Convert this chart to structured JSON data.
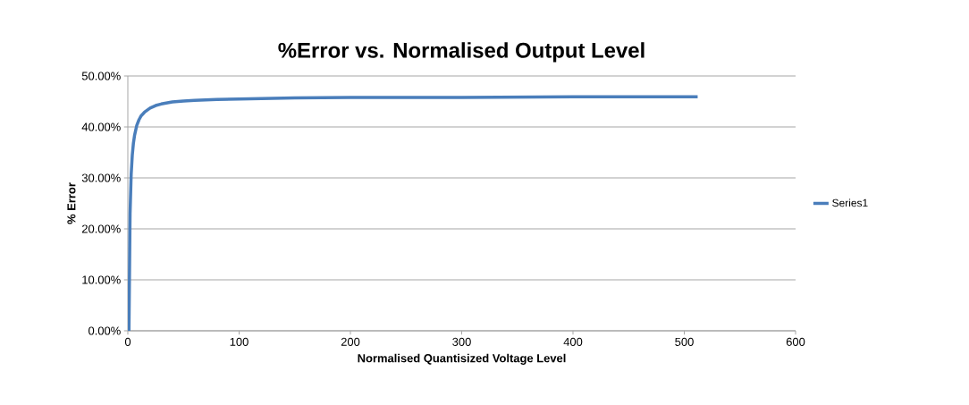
{
  "chart_data": {
    "type": "line",
    "title": "%Error vs. Normalised Output Level",
    "xlabel": "Normalised Quantisized Voltage Level",
    "ylabel": "% Error",
    "x": [
      1,
      2,
      3,
      4,
      5,
      6,
      8,
      10,
      12,
      15,
      20,
      25,
      30,
      40,
      50,
      60,
      80,
      100,
      150,
      200,
      250,
      300,
      400,
      512
    ],
    "series": [
      {
        "name": "Series1",
        "color": "#4a7ebb",
        "values": [
          0,
          23,
          30.7,
          34.5,
          36.8,
          38.3,
          40.3,
          41.4,
          42.2,
          42.9,
          43.7,
          44.2,
          44.5,
          44.9,
          45.1,
          45.2,
          45.4,
          45.5,
          45.7,
          45.8,
          45.8,
          45.8,
          45.9,
          45.9
        ]
      }
    ],
    "xlim": [
      0,
      600
    ],
    "xticks": [
      0,
      100,
      200,
      300,
      400,
      500,
      600
    ],
    "ylim": [
      0,
      50
    ],
    "yticks": [
      {
        "value": 0,
        "label": "0.00%"
      },
      {
        "value": 10,
        "label": "10.00%"
      },
      {
        "value": 20,
        "label": "20.00%"
      },
      {
        "value": 30,
        "label": "30.00%"
      },
      {
        "value": 40,
        "label": "40.00%"
      },
      {
        "value": 50,
        "label": "50.00%"
      }
    ],
    "grid": "y",
    "legend": "right",
    "marker": "none",
    "line_style": "solid"
  }
}
